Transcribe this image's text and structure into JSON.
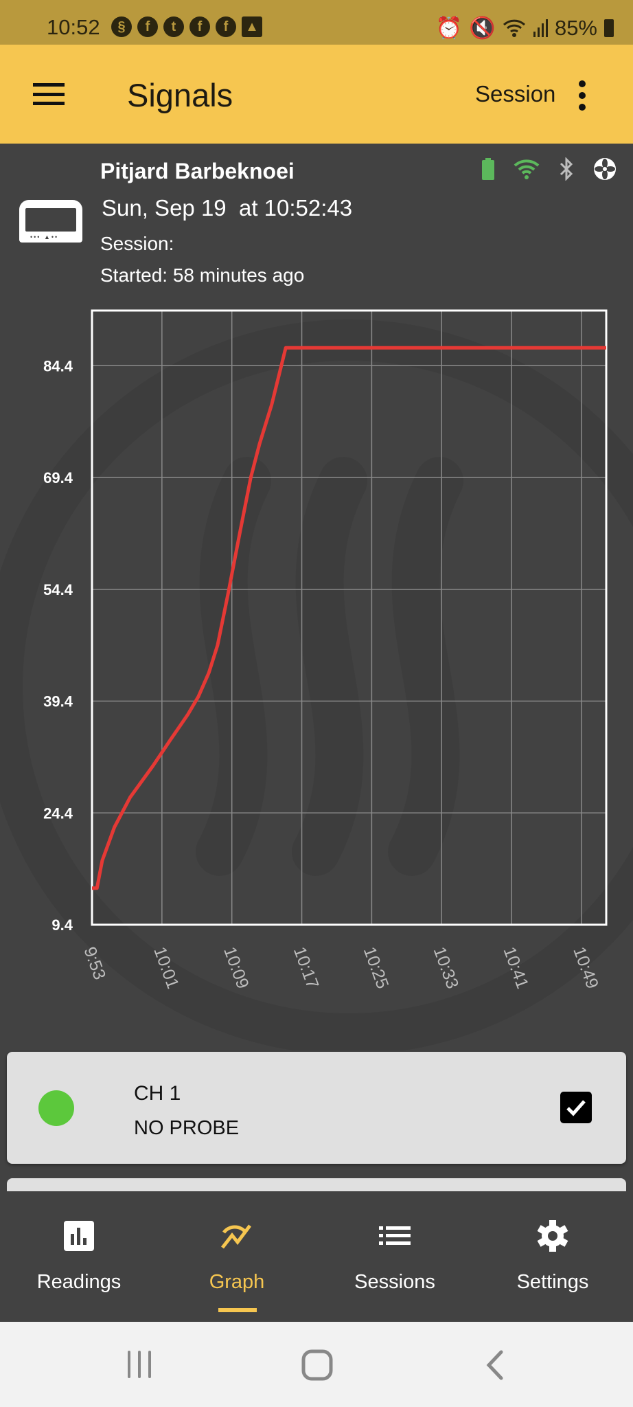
{
  "status_bar": {
    "time": "10:52",
    "battery": "85%",
    "notification_icons": [
      "threads-icon",
      "facebook-icon",
      "tumblr-icon",
      "facebook-icon",
      "facebook-icon",
      "gallery-icon"
    ],
    "system_icons": [
      "alarm-icon",
      "mute-icon",
      "wifi-icon",
      "signal-icon",
      "battery-icon"
    ]
  },
  "app_bar": {
    "title": "Signals",
    "session_label": "Session"
  },
  "device": {
    "name": "Pitjard Barbeknoei",
    "datetime": "Sun, Sep 19  at 10:52:43",
    "session": "Session:",
    "started": "Started: 58 minutes ago",
    "colors": {
      "battery": "#5cb85c",
      "wifi": "#5cb85c",
      "bluetooth": "#bdbdbd",
      "fan": "#ffffff"
    }
  },
  "chart_data": {
    "type": "line",
    "title": "",
    "xlabel": "",
    "ylabel": "",
    "grid": true,
    "x_ticks": [
      "9:53",
      "10:01",
      "10:09",
      "10:17",
      "10:25",
      "10:33",
      "10:41",
      "10:49"
    ],
    "y_ticks": [
      "9.4",
      "24.4",
      "39.4",
      "54.4",
      "69.4",
      "84.4"
    ],
    "xlim": [
      "9:53:00",
      "10:51:50"
    ],
    "ylim": [
      9.4,
      91.8
    ],
    "series": [
      {
        "color": "#e53935",
        "x": [
          "9:53:00",
          "9:53:34",
          "9:54:10",
          "9:55:34",
          "9:57:22",
          "9:59:58",
          "10:01:58",
          "10:03:58",
          "10:05:10",
          "10:06:22",
          "10:07:22",
          "10:08:34",
          "10:09:58",
          "10:11:10",
          "10:12:10",
          "10:13:34",
          "10:15:10",
          "10:51:50"
        ],
        "y": [
          14.3,
          14.3,
          18.0,
          22.5,
          26.5,
          30.7,
          34.2,
          37.6,
          40.0,
          43.2,
          46.9,
          53.8,
          62.3,
          69.4,
          73.9,
          79.2,
          86.8,
          86.8
        ]
      }
    ]
  },
  "channel": {
    "name": "CH 1",
    "status": "NO PROBE",
    "color": "#5cc83c",
    "checked": true
  },
  "bottom_nav": [
    {
      "label": "Readings",
      "icon": "bar-chart-icon",
      "active": false
    },
    {
      "label": "Graph",
      "icon": "graph-icon",
      "active": true
    },
    {
      "label": "Sessions",
      "icon": "list-icon",
      "active": false
    },
    {
      "label": "Settings",
      "icon": "gear-icon",
      "active": false
    }
  ],
  "colors": {
    "accent": "#f6c650",
    "background": "#424242",
    "status_bar": "#b9993d"
  }
}
